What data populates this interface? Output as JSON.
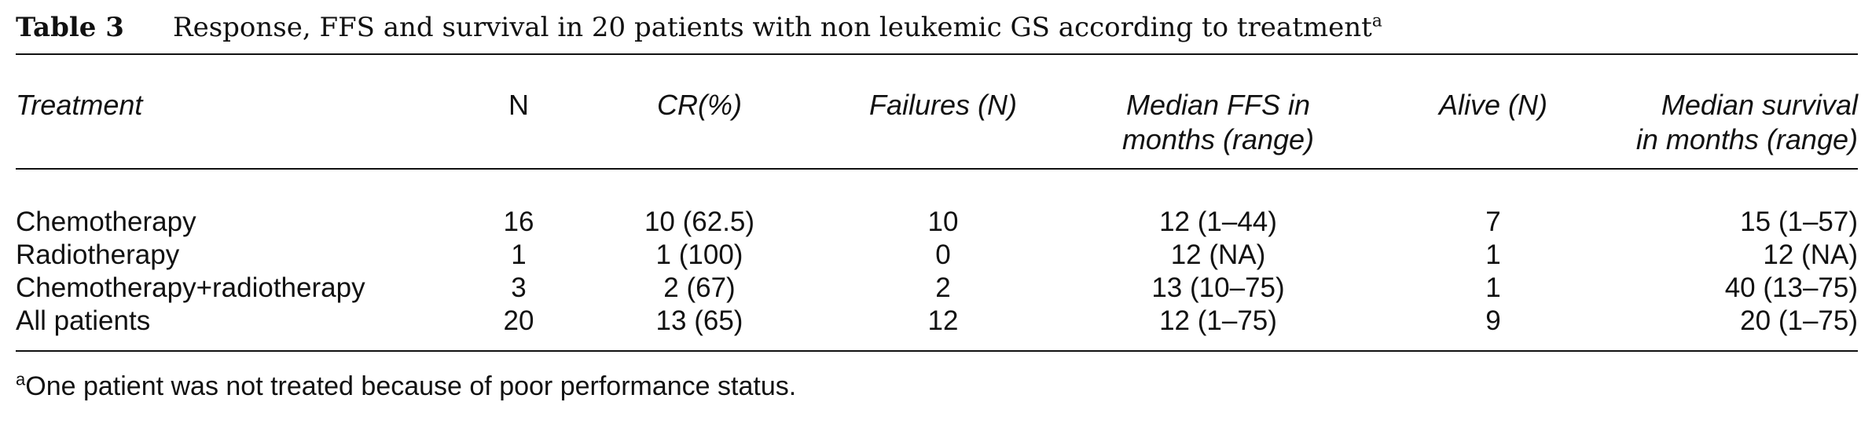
{
  "caption": {
    "label": "Table 3",
    "title": "Response, FFS and survival in 20 patients with non leukemic GS according to treatment",
    "footnote_marker": "a"
  },
  "columns": [
    {
      "line1": "Treatment",
      "line2": ""
    },
    {
      "line1": "N",
      "line2": ""
    },
    {
      "line1": "CR(%)",
      "line2": ""
    },
    {
      "line1": "Failures (N)",
      "line2": ""
    },
    {
      "line1": "Median FFS in",
      "line2": "months (range)"
    },
    {
      "line1": "Alive (N)",
      "line2": ""
    },
    {
      "line1": "Median survival",
      "line2": "in months (range)"
    }
  ],
  "rows": [
    {
      "treatment": "Chemotherapy",
      "n": "16",
      "cr": "10 (62.5)",
      "failures": "10",
      "ffs": "12 (1–44)",
      "alive": "7",
      "survival": "15 (1–57)"
    },
    {
      "treatment": "Radiotherapy",
      "n": "1",
      "cr": "1 (100)",
      "failures": "0",
      "ffs": "12 (NA)",
      "alive": "1",
      "survival": "12 (NA)"
    },
    {
      "treatment": "Chemotherapy+radiotherapy",
      "n": "3",
      "cr": "2 (67)",
      "failures": "2",
      "ffs": "13 (10–75)",
      "alive": "1",
      "survival": "40 (13–75)"
    },
    {
      "treatment": "All patients",
      "n": "20",
      "cr": "13 (65)",
      "failures": "12",
      "ffs": "12 (1–75)",
      "alive": "9",
      "survival": "20 (1–75)"
    }
  ],
  "footnote": {
    "marker": "a",
    "text": "One patient was not treated because of poor performance status."
  }
}
